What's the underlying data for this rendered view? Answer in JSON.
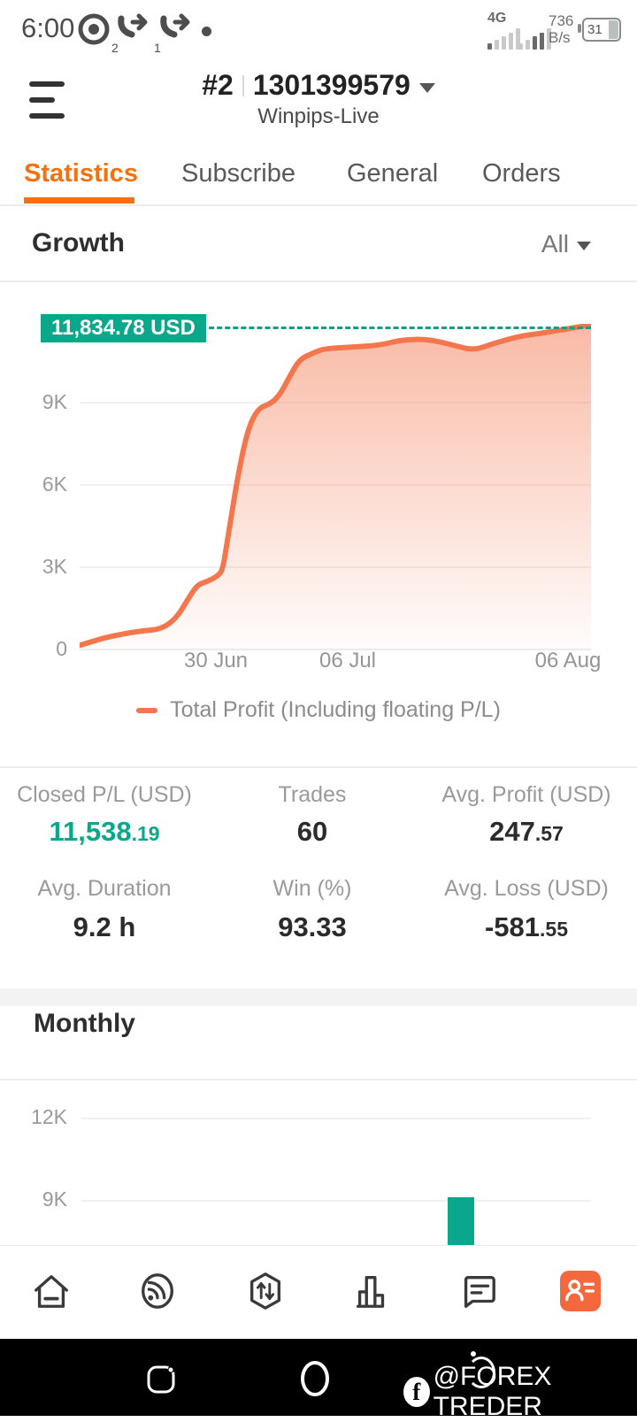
{
  "colors": {
    "accent_orange": "#f5710f",
    "line_orange": "#f4764d",
    "teal": "#0aa88a",
    "profile_orange": "#f5673d"
  },
  "status_bar": {
    "time": "6:00",
    "call_forward_badge_1": "2",
    "call_forward_badge_2": "1",
    "network_type": "4G",
    "data_rate_value": "736",
    "data_rate_unit": "B/s",
    "battery_percent": "31"
  },
  "header": {
    "signal_number": "#2",
    "account_id": "1301399579",
    "signal_name": "Winpips-Live"
  },
  "tabs": [
    {
      "label": "Statistics",
      "active": true
    },
    {
      "label": "Subscribe",
      "active": false
    },
    {
      "label": "General",
      "active": false
    },
    {
      "label": "Orders",
      "active": false
    }
  ],
  "growth": {
    "title": "Growth",
    "filter_value": "All",
    "current_value_badge": "11,834.78 USD",
    "legend": "Total Profit (Including floating P/L)"
  },
  "chart_data": [
    {
      "type": "area",
      "title": "Growth",
      "series": [
        {
          "name": "Total Profit (Including floating P/L)",
          "points_x_fraction_value": [
            [
              0.0,
              150
            ],
            [
              0.04,
              390
            ],
            [
              0.08,
              550
            ],
            [
              0.12,
              680
            ],
            [
              0.16,
              740
            ],
            [
              0.19,
              1160
            ],
            [
              0.21,
              1780
            ],
            [
              0.23,
              2360
            ],
            [
              0.25,
              2480
            ],
            [
              0.27,
              2680
            ],
            [
              0.28,
              2900
            ],
            [
              0.29,
              4100
            ],
            [
              0.31,
              6400
            ],
            [
              0.33,
              8100
            ],
            [
              0.35,
              8800
            ],
            [
              0.37,
              8930
            ],
            [
              0.39,
              9230
            ],
            [
              0.41,
              9930
            ],
            [
              0.43,
              10580
            ],
            [
              0.46,
              10840
            ],
            [
              0.48,
              10970
            ],
            [
              0.54,
              11030
            ],
            [
              0.59,
              11100
            ],
            [
              0.63,
              11290
            ],
            [
              0.68,
              11320
            ],
            [
              0.73,
              11100
            ],
            [
              0.77,
              10900
            ],
            [
              0.81,
              11160
            ],
            [
              0.86,
              11420
            ],
            [
              0.9,
              11520
            ],
            [
              0.94,
              11650
            ],
            [
              1.0,
              11834.78
            ]
          ]
        }
      ],
      "current_value": 11834.78,
      "current_value_label": "11,834.78 USD",
      "ylim": [
        0,
        12600
      ],
      "yticks": [
        "0",
        "3K",
        "6K",
        "9K"
      ],
      "ytick_values": [
        0,
        3000,
        6000,
        9000
      ],
      "xticks": [
        {
          "label": "30 Jun",
          "pos": 0.27
        },
        {
          "label": "06 Jul",
          "pos": 0.51
        },
        {
          "label": "06 Aug",
          "pos": 0.95
        }
      ],
      "grid": true,
      "legend_position": "bottom",
      "line_color": "#f4764d",
      "marker_line_color": "#0f9f85"
    },
    {
      "type": "bar",
      "title": "Monthly",
      "yticks": [
        "12K",
        "9K"
      ],
      "ytick_values": [
        12000,
        9000
      ],
      "bars": [
        {
          "x_frac": 0.745,
          "value": 9100
        }
      ],
      "bar_color": "#0aa68d",
      "grid": true,
      "note_visible_area": "chart bottom truncated by navigation bar"
    }
  ],
  "stats": [
    {
      "label": "Closed P/L (USD)",
      "value_main": "11,538",
      "value_small": ".19",
      "accent": true
    },
    {
      "label": "Trades",
      "value_main": "60",
      "value_small": "",
      "accent": false
    },
    {
      "label": "Avg. Profit (USD)",
      "value_main": "247",
      "value_small": ".57",
      "accent": false
    },
    {
      "label": "Avg. Duration",
      "value_main": "9.2 h",
      "value_small": "",
      "accent": false
    },
    {
      "label": "Win (%)",
      "value_main": "93.33",
      "value_small": "",
      "accent": false
    },
    {
      "label": "Avg. Loss (USD)",
      "value_main": "-581",
      "value_small": ".55",
      "accent": false
    }
  ],
  "monthly": {
    "title": "Monthly"
  },
  "bottom_nav": {
    "items": [
      "home",
      "signals",
      "trade",
      "charts",
      "messages",
      "profile"
    ],
    "active": "profile"
  },
  "system_nav": {
    "watermark": "@FOREX TREDER"
  }
}
